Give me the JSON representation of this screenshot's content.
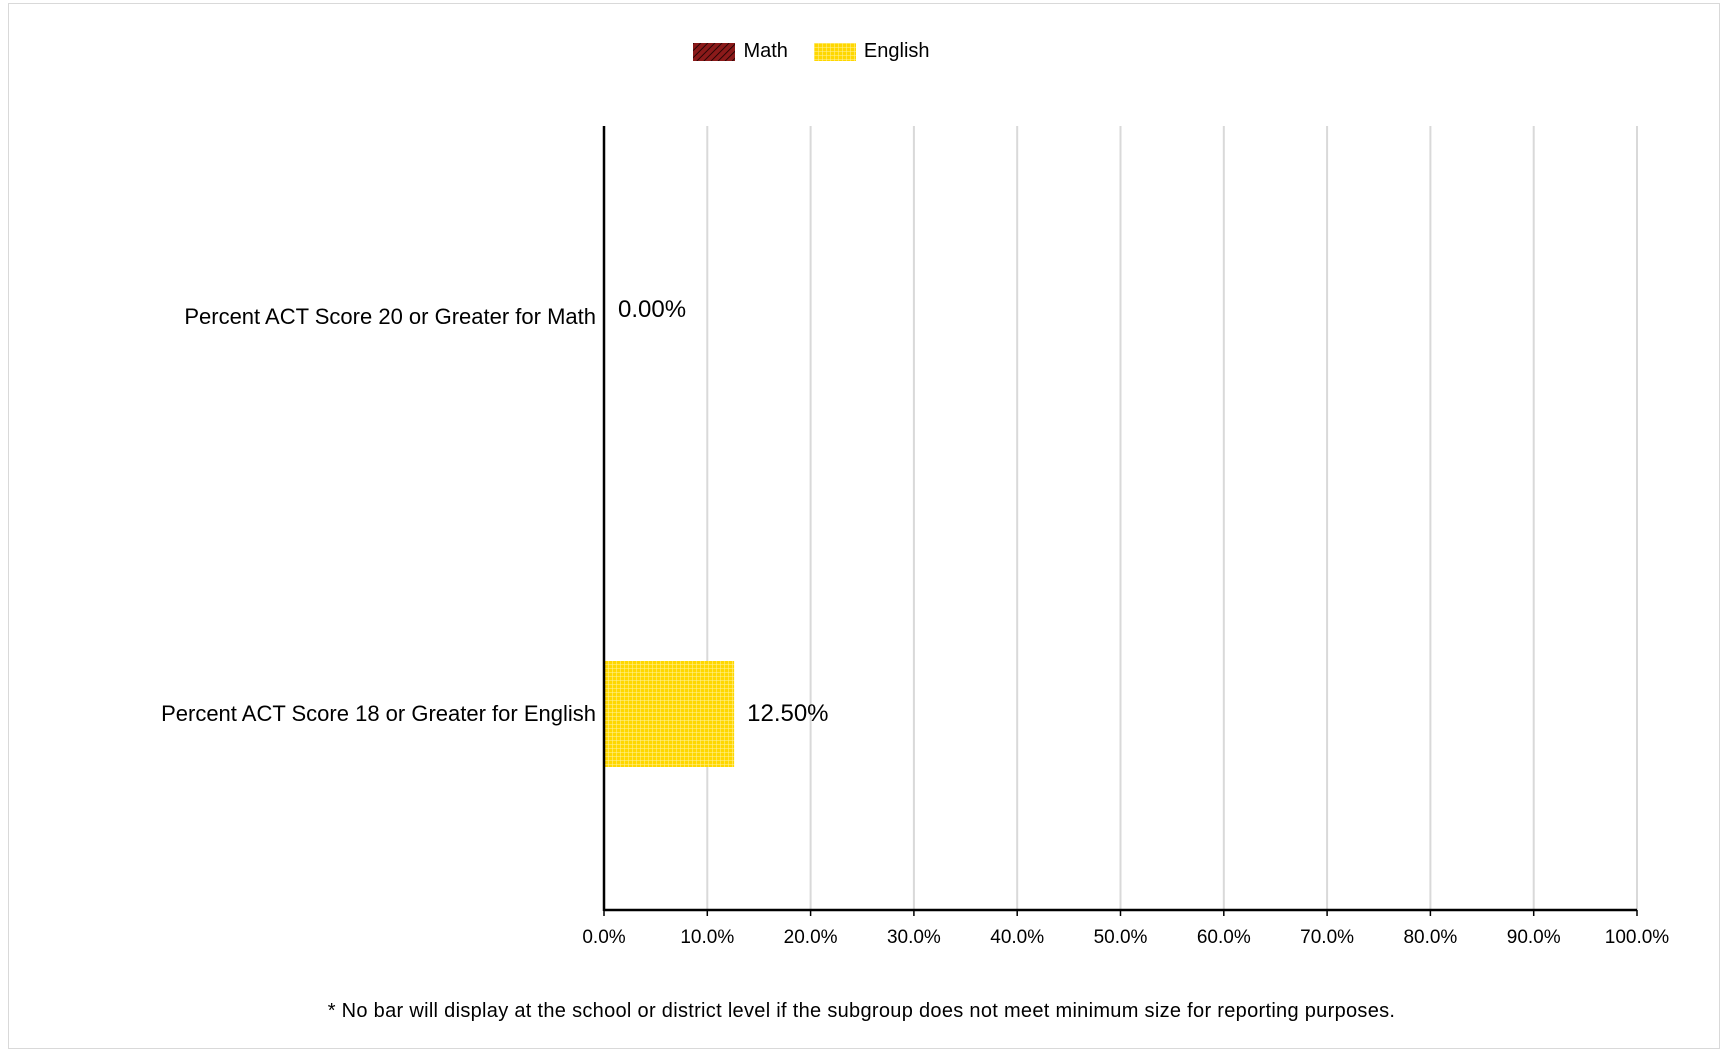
{
  "legend": [
    {
      "name": "Math",
      "color": "#8b1a1a",
      "pattern": "hatch"
    },
    {
      "name": "English",
      "color": "#ffd700",
      "pattern": "grid"
    }
  ],
  "footnote": "* No bar will display at the school or district level if the subgroup does not meet minimum size for reporting purposes.",
  "chart_data": {
    "type": "bar",
    "orientation": "horizontal",
    "categories": [
      "Percent ACT Score 20 or Greater for Math",
      "Percent ACT Score 18 or Greater for English"
    ],
    "series": [
      {
        "name": "Math",
        "values": [
          0.0,
          null
        ]
      },
      {
        "name": "English",
        "values": [
          null,
          12.5
        ]
      }
    ],
    "data_labels": [
      "0.00%",
      "12.50%"
    ],
    "xlim": [
      0,
      100
    ],
    "xticks": [
      "0.0%",
      "10.0%",
      "20.0%",
      "30.0%",
      "40.0%",
      "50.0%",
      "60.0%",
      "70.0%",
      "80.0%",
      "90.0%",
      "100.0%"
    ],
    "grid": true,
    "legend_position": "top-center",
    "colors": {
      "math": "#8b1a1a",
      "english": "#ffd700",
      "grid": "#d9d9d9"
    }
  }
}
